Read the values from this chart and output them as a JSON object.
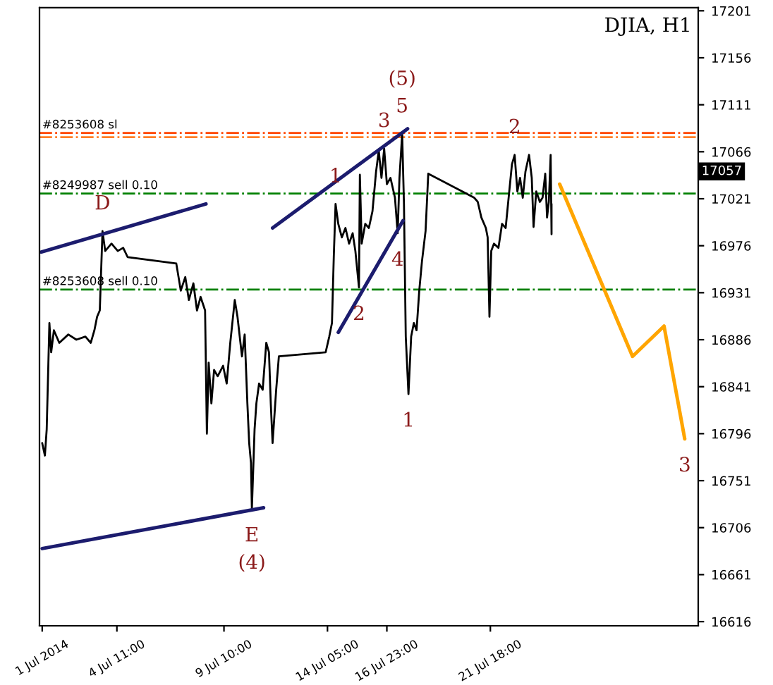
{
  "chart_data": {
    "type": "line",
    "title": "DJIA, H1",
    "xlim": [
      "2014-06-30T21:00",
      "2014-07-31T09:00"
    ],
    "ylim": [
      16612,
      17204
    ],
    "xticks": [
      {
        "value": "2014-07-01T00:00",
        "label": "1 Jul 2014"
      },
      {
        "value": "2014-07-04T11:00",
        "label": "4 Jul 11:00"
      },
      {
        "value": "2014-07-09T10:00",
        "label": "9 Jul 10:00"
      },
      {
        "value": "2014-07-14T05:00",
        "label": "14 Jul 05:00"
      },
      {
        "value": "2014-07-16T23:00",
        "label": "16 Jul 23:00"
      },
      {
        "value": "2014-07-21T18:00",
        "label": "21 Jul 18:00"
      }
    ],
    "yticks": [
      16616,
      16661,
      16706,
      16751,
      16796,
      16841,
      16886,
      16931,
      16976,
      17021,
      17066,
      17111,
      17156,
      17201
    ],
    "grid": false,
    "legend": false,
    "series": [
      {
        "color": "#000000",
        "x": [
          "2014-07-01T00:00",
          "2014-07-01T03:00",
          "2014-07-01T05:00",
          "2014-07-01T08:00",
          "2014-07-01T10:00",
          "2014-07-01T13:00",
          "2014-07-01T19:00",
          "2014-07-02T05:00",
          "2014-07-02T14:00",
          "2014-07-03T00:00",
          "2014-07-03T06:00",
          "2014-07-03T10:00",
          "2014-07-03T13:00",
          "2014-07-03T16:00",
          "2014-07-03T19:00",
          "2014-07-03T22:00",
          "2014-07-04T05:00",
          "2014-07-04T12:00",
          "2014-07-04T18:00",
          "2014-07-04T23:00",
          "2014-07-07T05:00",
          "2014-07-07T10:00",
          "2014-07-07T15:00",
          "2014-07-07T19:00",
          "2014-07-08T00:00",
          "2014-07-08T04:00",
          "2014-07-08T08:00",
          "2014-07-08T13:00",
          "2014-07-08T15:00",
          "2014-07-08T17:00",
          "2014-07-08T20:00",
          "2014-07-08T23:00",
          "2014-07-09T03:00",
          "2014-07-09T09:00",
          "2014-07-09T13:00",
          "2014-07-09T17:00",
          "2014-07-09T22:00",
          "2014-07-10T01:00",
          "2014-07-10T06:00",
          "2014-07-10T09:00",
          "2014-07-10T12:00",
          "2014-07-10T14:00",
          "2014-07-10T16:00",
          "2014-07-10T17:00",
          "2014-07-10T20:00",
          "2014-07-10T22:00",
          "2014-07-11T01:00",
          "2014-07-11T05:00",
          "2014-07-11T09:00",
          "2014-07-11T12:00",
          "2014-07-11T14:00",
          "2014-07-11T16:00",
          "2014-07-11T20:00",
          "2014-07-11T23:00",
          "2014-07-14T03:00",
          "2014-07-14T07:00",
          "2014-07-14T10:00",
          "2014-07-14T12:00",
          "2014-07-14T14:00",
          "2014-07-14T17:00",
          "2014-07-14T21:00",
          "2014-07-15T01:00",
          "2014-07-15T05:00",
          "2014-07-15T09:00",
          "2014-07-15T12:00",
          "2014-07-15T16:00",
          "2014-07-15T17:00",
          "2014-07-15T19:00",
          "2014-07-15T23:00",
          "2014-07-16T03:00",
          "2014-07-16T07:00",
          "2014-07-16T11:00",
          "2014-07-16T14:00",
          "2014-07-16T17:00",
          "2014-07-16T20:00",
          "2014-07-16T23:00",
          "2014-07-17T03:00",
          "2014-07-17T08:00",
          "2014-07-17T11:00",
          "2014-07-17T13:00",
          "2014-07-17T16:00",
          "2014-07-17T18:00",
          "2014-07-17T20:00",
          "2014-07-17T23:00",
          "2014-07-18T02:00",
          "2014-07-18T05:00",
          "2014-07-18T08:00",
          "2014-07-18T11:00",
          "2014-07-18T14:00",
          "2014-07-18T18:00",
          "2014-07-18T21:00",
          "2014-07-21T00:00",
          "2014-07-21T04:00",
          "2014-07-21T08:00",
          "2014-07-21T13:00",
          "2014-07-21T15:00",
          "2014-07-21T17:00",
          "2014-07-21T19:00",
          "2014-07-21T22:00",
          "2014-07-22T03:00",
          "2014-07-22T07:00",
          "2014-07-22T11:00",
          "2014-07-22T15:00",
          "2014-07-22T18:00",
          "2014-07-22T21:00",
          "2014-07-23T00:00",
          "2014-07-23T03:00",
          "2014-07-23T06:00",
          "2014-07-23T09:00",
          "2014-07-23T13:00",
          "2014-07-23T16:00",
          "2014-07-23T18:00",
          "2014-07-23T21:00",
          "2014-07-24T01:00",
          "2014-07-24T04:00",
          "2014-07-24T07:00",
          "2014-07-24T09:00",
          "2014-07-24T11:00",
          "2014-07-24T13:00",
          "2014-07-24T14:00",
          "2014-07-24T14:00"
        ],
        "values": [
          16787,
          16775,
          16800,
          16902,
          16874,
          16895,
          16883,
          16891,
          16886,
          16889,
          16883,
          16895,
          16908,
          16914,
          16990,
          16971,
          16978,
          16971,
          16974,
          16965,
          16959,
          16933,
          16946,
          16924,
          16940,
          16914,
          16927,
          16914,
          16796,
          16864,
          16825,
          16857,
          16851,
          16861,
          16844,
          16883,
          16924,
          16908,
          16870,
          16891,
          16825,
          16787,
          16768,
          16724,
          16800,
          16825,
          16844,
          16838,
          16883,
          16874,
          16825,
          16787,
          16838,
          16870,
          16874,
          16889,
          16902,
          16965,
          17016,
          16997,
          16984,
          16993,
          16978,
          16988,
          16971,
          16936,
          17044,
          16978,
          16997,
          16993,
          17009,
          17047,
          17067,
          17041,
          17069,
          17035,
          17041,
          17022,
          16988,
          17041,
          17083,
          17016,
          16889,
          16834,
          16889,
          16902,
          16895,
          16933,
          16961,
          16990,
          17045,
          17022,
          17018,
          17003,
          16993,
          16984,
          16908,
          16971,
          16978,
          16974,
          16997,
          16993,
          17028,
          17054,
          17063,
          17028,
          17041,
          17022,
          17047,
          17063,
          17041,
          16994,
          17028,
          17018,
          17022,
          17045,
          17003,
          17018,
          17063,
          16987,
          17016
        ]
      },
      {
        "color": "#1c1c6e",
        "x": [
          "2014-06-30T23:00",
          "2014-07-08T14:00"
        ],
        "values": [
          16970,
          17016
        ]
      },
      {
        "color": "#1c1c6e",
        "x": [
          "2014-07-01T00:00",
          "2014-07-11T06:00"
        ],
        "values": [
          16686,
          16725
        ]
      },
      {
        "color": "#1c1c6e",
        "x": [
          "2014-07-11T16:00",
          "2014-07-17T22:00"
        ],
        "values": [
          16993,
          17088
        ]
      },
      {
        "color": "#1c1c6e",
        "x": [
          "2014-07-14T17:00",
          "2014-07-17T17:00"
        ],
        "values": [
          16893,
          17000
        ]
      },
      {
        "color": "#ffa500",
        "x": [
          "2014-07-24T23:00",
          "2014-07-28T08:00",
          "2014-07-29T19:00",
          "2014-07-30T18:00"
        ],
        "values": [
          17035,
          16870,
          16899,
          16791
        ]
      }
    ],
    "ref_lines": [
      {
        "axis": "y",
        "value": 17084,
        "label": "#8253608 sl",
        "color": "#ff4500"
      },
      {
        "axis": "y",
        "value": 17080,
        "label": null,
        "color": "#ff7f27"
      },
      {
        "axis": "y",
        "value": 17026,
        "label": "#8249987 sell 0.10",
        "color": "#008000"
      },
      {
        "axis": "y",
        "value": 16934,
        "label": "#8253608 sell 0.10",
        "color": "#008000"
      }
    ],
    "annotations": [
      {
        "text": "D",
        "x": "2014-07-03T19:00",
        "y": 16990
      },
      {
        "text": "E",
        "x": "2014-07-10T17:00",
        "y": 16724
      },
      {
        "text": "(4)",
        "x": "2014-07-10T17:00",
        "y": 16724
      },
      {
        "text": "1",
        "x": "2014-07-14T14:00",
        "y": 17016
      },
      {
        "text": "2",
        "x": "2014-07-15T16:00",
        "y": 16936
      },
      {
        "text": "3",
        "x": "2014-07-16T20:00",
        "y": 17069
      },
      {
        "text": "4",
        "x": "2014-07-17T11:00",
        "y": 16988
      },
      {
        "text": "5",
        "x": "2014-07-17T16:00",
        "y": 17083
      },
      {
        "text": "(5)",
        "x": "2014-07-17T16:00",
        "y": 17083
      },
      {
        "text": "1",
        "x": "2014-07-17T23:00",
        "y": 16834
      },
      {
        "text": "2",
        "x": "2014-07-22T21:00",
        "y": 17063
      },
      {
        "text": "3",
        "x": "2014-07-30T18:00",
        "y": 16791
      },
      "17057"
    ]
  }
}
